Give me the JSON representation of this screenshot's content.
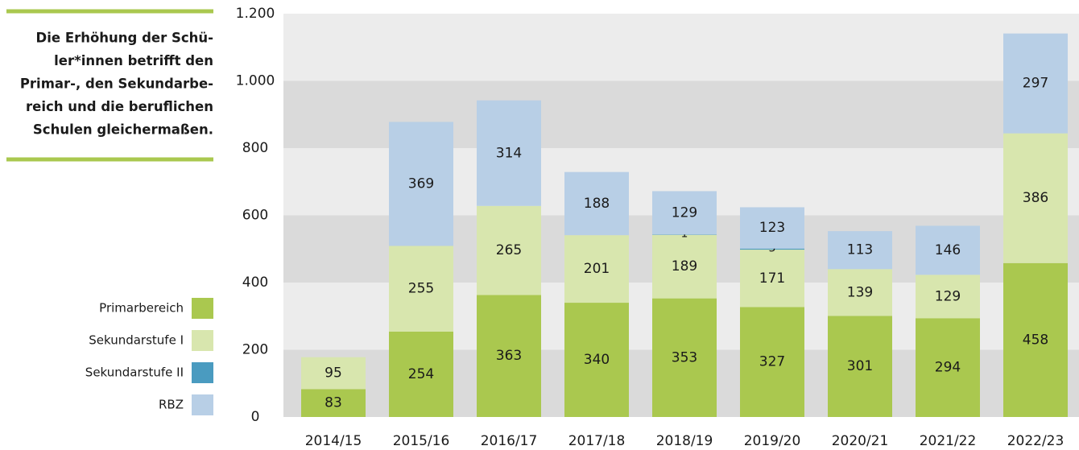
{
  "chart_data": {
    "type": "stacked_bar",
    "annotation": [
      "Die Erhöhung der Schü-",
      "ler*innen betrifft den",
      "Primar-, den Sekundarbe-",
      "reich und die beruflichen",
      "Schulen gleichermaßen."
    ],
    "categories": [
      "2014/15",
      "2015/16",
      "2016/17",
      "2017/18",
      "2018/19",
      "2019/20",
      "2020/21",
      "2021/22",
      "2022/23"
    ],
    "series": [
      {
        "name": "Primarbereich",
        "color": "#aac84f",
        "values": [
          83,
          254,
          363,
          340,
          353,
          327,
          301,
          294,
          458
        ]
      },
      {
        "name": "Sekundarstufe I",
        "color": "#d8e6ae",
        "values": [
          95,
          255,
          265,
          201,
          189,
          171,
          139,
          129,
          386
        ]
      },
      {
        "name": "Sekundarstufe II",
        "color": "#4a9bc0",
        "values": [
          null,
          null,
          null,
          null,
          1,
          3,
          null,
          null,
          null
        ]
      },
      {
        "name": "RBZ",
        "color": "#b8cfe6",
        "values": [
          null,
          369,
          314,
          188,
          129,
          123,
          113,
          146,
          297
        ]
      }
    ],
    "ylim": [
      0,
      1200
    ],
    "yticks": [
      0,
      200,
      400,
      600,
      800,
      {
        "value": 1000,
        "label": "1.000"
      },
      {
        "value": 1200,
        "label": "1.200"
      }
    ],
    "grid": "bands",
    "legend": "lower left"
  }
}
